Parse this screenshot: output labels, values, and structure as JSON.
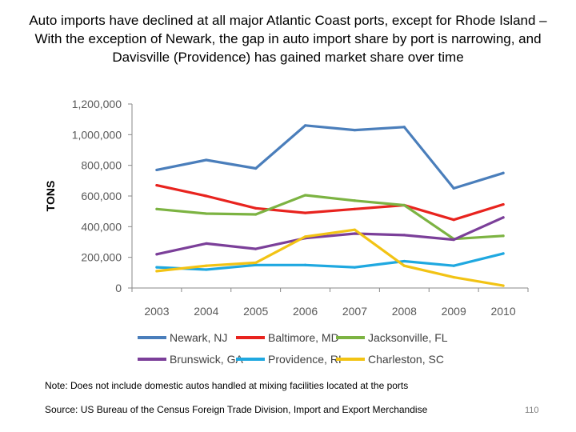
{
  "title": "Auto imports have declined at all major Atlantic Coast ports, except for Rhode Island – With the exception of Newark, the gap in auto import share by port is narrowing, and Davisville (Providence) has gained market share over time",
  "chart_data": {
    "type": "line",
    "ylabel": "TONS",
    "xlabel": "",
    "ylim": [
      0,
      1200000
    ],
    "yticks": [
      0,
      200000,
      400000,
      600000,
      800000,
      1000000,
      1200000
    ],
    "ytick_labels": [
      "0",
      "200,000",
      "400,000",
      "600,000",
      "800,000",
      "1,000,000",
      "1,200,000"
    ],
    "categories": [
      "2003",
      "2004",
      "2005",
      "2006",
      "2007",
      "2008",
      "2009",
      "2010"
    ],
    "grid": false,
    "legend_position": "bottom",
    "series": [
      {
        "name": "Newark, NJ",
        "color": "#4a7ebb",
        "values": [
          770000,
          835000,
          780000,
          1060000,
          1030000,
          1050000,
          650000,
          750000
        ]
      },
      {
        "name": "Baltimore, MD",
        "color": "#e8231e",
        "values": [
          670000,
          600000,
          520000,
          490000,
          515000,
          540000,
          445000,
          545000
        ]
      },
      {
        "name": "Jacksonville, FL",
        "color": "#7cb342",
        "values": [
          515000,
          485000,
          480000,
          605000,
          570000,
          540000,
          320000,
          340000
        ]
      },
      {
        "name": "Brunswick, GA",
        "color": "#7b3f99",
        "values": [
          220000,
          290000,
          255000,
          325000,
          355000,
          345000,
          315000,
          460000
        ]
      },
      {
        "name": "Providence, RI",
        "color": "#1fa8e0",
        "values": [
          135000,
          120000,
          150000,
          150000,
          135000,
          175000,
          145000,
          225000
        ]
      },
      {
        "name": "Charleston, SC",
        "color": "#f2c314",
        "values": [
          110000,
          145000,
          165000,
          335000,
          380000,
          145000,
          70000,
          15000
        ]
      }
    ]
  },
  "footer": {
    "note": "Note: Does not include domestic autos handled at mixing facilities located at the ports",
    "source": "Source: US Bureau of the Census Foreign Trade Division, Import and Export Merchandise",
    "page": "110"
  }
}
